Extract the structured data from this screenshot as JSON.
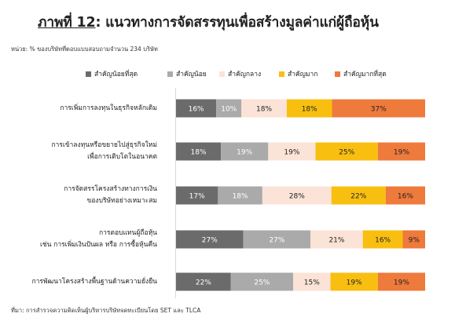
{
  "title": {
    "label": "ภาพที่ 12",
    "rest": ": แนวทางการจัดสรรทุนเพื่อสร้างมูลค่าแก่ผู้ถือหุ้น"
  },
  "unit_note": "หน่วย: % ของบริษัทที่ตอบแบบสอบถามจำนวน 234 บริษัท",
  "source_note": "ที่มา: การสำรวจความคิดเห็นผู้บริหารบริษัทจดทะเบียนโดย SET และ TLCA",
  "chart_data": {
    "type": "bar",
    "orientation": "horizontal",
    "stacked": true,
    "categories": [
      [
        "การเพิ่มการลงทุนในธุรกิจหลักเดิม"
      ],
      [
        "การเข้าลงทุนหรือขยายไปสู่ธุรกิจใหม่",
        "เพื่อการเติบโตในอนาคต"
      ],
      [
        "การจัดสรรโครงสร้างทางการเงิน",
        "ของบริษัทอย่างเหมาะสม"
      ],
      [
        "การตอบแทนผู้ถือหุ้น",
        "เช่น การเพิ่มเงินปันผล หรือ การซื้อหุ้นคืน"
      ],
      [
        "การพัฒนาโครงสร้างพื้นฐานด้านความยั่งยืน"
      ]
    ],
    "series": [
      {
        "name": "สำคัญน้อยที่สุด",
        "color": "#6b6b6b",
        "text_color": "#ffffff",
        "values": [
          16,
          18,
          17,
          27,
          22
        ]
      },
      {
        "name": "สำคัญน้อย",
        "color": "#aaaaaa",
        "text_color": "#ffffff",
        "values": [
          10,
          19,
          18,
          27,
          25
        ]
      },
      {
        "name": "สำคัญกลาง",
        "color": "#fbe3d7",
        "text_color": "#222222",
        "values": [
          18,
          19,
          28,
          21,
          15
        ]
      },
      {
        "name": "สำคัญมาก",
        "color": "#f9bf10",
        "text_color": "#222222",
        "values": [
          18,
          25,
          22,
          16,
          19
        ]
      },
      {
        "name": "สำคัญมากที่สุด",
        "color": "#ee7a3c",
        "text_color": "#222222",
        "values": [
          37,
          19,
          16,
          9,
          19
        ]
      }
    ],
    "value_suffix": "%",
    "legend_position": "top",
    "grid": false
  }
}
